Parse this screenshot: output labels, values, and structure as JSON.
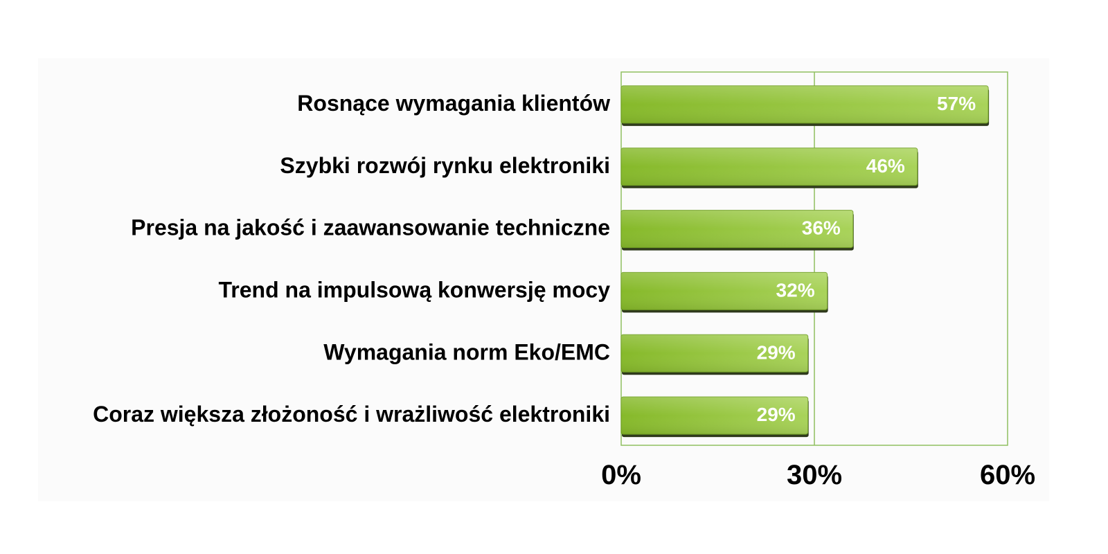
{
  "chart_data": {
    "type": "bar",
    "orientation": "horizontal",
    "categories": [
      "Rosnące wymagania klientów",
      "Szybki rozwój rynku elektroniki",
      "Presja na jakość i zaawansowanie techniczne",
      "Trend na impulsową konwersję mocy",
      "Wymagania norm Eko/EMC",
      "Coraz większa złożoność i wrażliwość elektroniki"
    ],
    "values": [
      57,
      46,
      36,
      32,
      29,
      29
    ],
    "value_labels": [
      "57%",
      "46%",
      "36%",
      "32%",
      "29%",
      "29%"
    ],
    "xlim": [
      0,
      60
    ],
    "xticks": [
      0,
      30,
      60
    ],
    "xtick_labels": [
      "0%",
      "30%",
      "60%"
    ],
    "title": "",
    "xlabel": "",
    "ylabel": "",
    "grid": "vertical",
    "colors": {
      "bar": "#8dbf32",
      "bar_light": "#a9d35a",
      "bar_shadow": "#2f3a1c",
      "frame": "#8fc060",
      "value_text": "#ffffff"
    }
  }
}
